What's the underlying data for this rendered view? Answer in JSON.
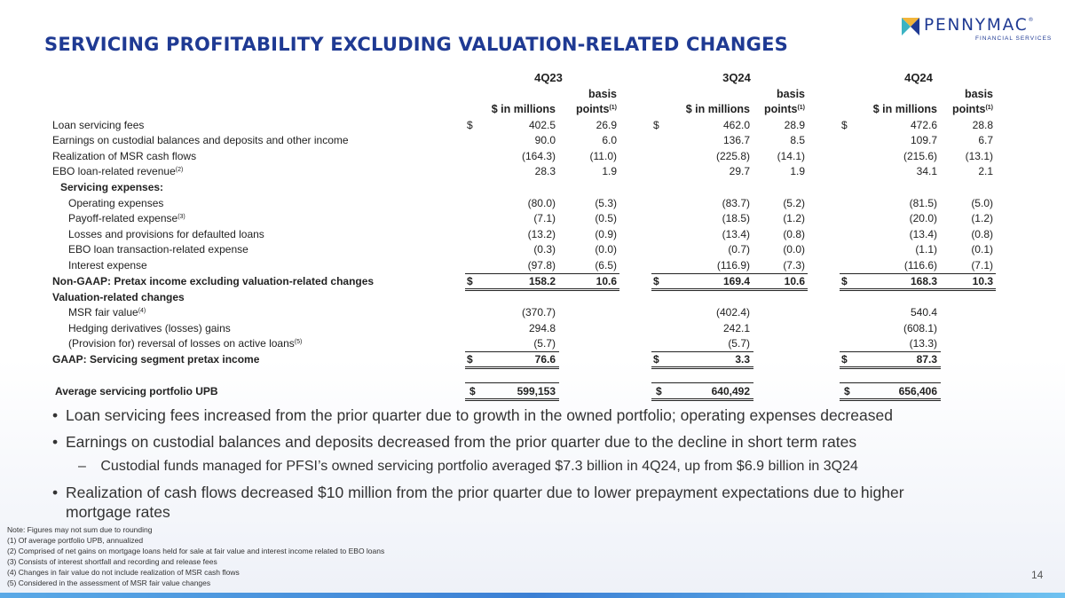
{
  "title": "SERVICING PROFITABILITY EXCLUDING VALUATION-RELATED CHANGES",
  "logo": {
    "name": "PENNYMAC",
    "sub": "FINANCIAL SERVICES",
    "trademark": "®"
  },
  "colors": {
    "title": "#1f3a93",
    "bar": "#3b7fd4",
    "logo_gold": "#f2b53a",
    "logo_teal": "#3bb3c3"
  },
  "table": {
    "periods": [
      "4Q23",
      "3Q24",
      "4Q24"
    ],
    "col_millions": "$ in millions",
    "col_basis_1": "basis",
    "col_basis_2": "points",
    "col_basis_sup": "(1)",
    "dollar": "$",
    "rows": [
      {
        "label": "Loan servicing fees",
        "sup": "",
        "v": [
          "402.5",
          "26.9",
          "462.0",
          "28.9",
          "472.6",
          "28.8"
        ]
      },
      {
        "label": "Earnings on custodial balances and deposits and other income",
        "sup": "",
        "v": [
          "90.0",
          "6.0",
          "136.7",
          "8.5",
          "109.7",
          "6.7"
        ]
      },
      {
        "label": "Realization of MSR cash flows",
        "sup": "",
        "v": [
          "(164.3)",
          "(11.0)",
          "(225.8)",
          "(14.1)",
          "(215.6)",
          "(13.1)"
        ]
      },
      {
        "label": "EBO loan-related revenue",
        "sup": "(2)",
        "v": [
          "28.3",
          "1.9",
          "29.7",
          "1.9",
          "34.1",
          "2.1"
        ]
      },
      {
        "label": "Servicing expenses:",
        "sup": "",
        "v": [
          "",
          "",
          "",
          "",
          "",
          ""
        ]
      },
      {
        "label": "Operating expenses",
        "sup": "",
        "v": [
          "(80.0)",
          "(5.3)",
          "(83.7)",
          "(5.2)",
          "(81.5)",
          "(5.0)"
        ]
      },
      {
        "label": "Payoff-related expense",
        "sup": "(3)",
        "v": [
          "(7.1)",
          "(0.5)",
          "(18.5)",
          "(1.2)",
          "(20.0)",
          "(1.2)"
        ]
      },
      {
        "label": "Losses and provisions for defaulted loans",
        "sup": "",
        "v": [
          "(13.2)",
          "(0.9)",
          "(13.4)",
          "(0.8)",
          "(13.4)",
          "(0.8)"
        ]
      },
      {
        "label": "EBO loan transaction-related expense",
        "sup": "",
        "v": [
          "(0.3)",
          "(0.0)",
          "(0.7)",
          "(0.0)",
          "(1.1)",
          "(0.1)"
        ]
      },
      {
        "label": "Interest expense",
        "sup": "",
        "v": [
          "(97.8)",
          "(6.5)",
          "(116.9)",
          "(7.3)",
          "(116.6)",
          "(7.1)"
        ]
      },
      {
        "label": "Non-GAAP: Pretax income excluding valuation-related changes",
        "sup": "",
        "v": [
          "158.2",
          "10.6",
          "169.4",
          "10.6",
          "168.3",
          "10.3"
        ]
      },
      {
        "label": "Valuation-related changes",
        "sup": "",
        "v": [
          "",
          "",
          "",
          "",
          "",
          ""
        ]
      },
      {
        "label": "MSR fair value",
        "sup": "(4)",
        "v": [
          "(370.7)",
          "",
          "(402.4)",
          "",
          "540.4",
          ""
        ]
      },
      {
        "label": "Hedging derivatives (losses) gains",
        "sup": "",
        "v": [
          "294.8",
          "",
          "242.1",
          "",
          "(608.1)",
          ""
        ]
      },
      {
        "label": "(Provision for) reversal of losses on active loans",
        "sup": "(5)",
        "v": [
          "(5.7)",
          "",
          "(5.7)",
          "",
          "(13.3)",
          ""
        ]
      },
      {
        "label": "GAAP: Servicing segment pretax income",
        "sup": "",
        "v": [
          "76.6",
          "",
          "3.3",
          "",
          "87.3",
          ""
        ]
      }
    ],
    "upb": {
      "label": "Average servicing portfolio UPB",
      "v": [
        "599,153",
        "640,492",
        "656,406"
      ]
    }
  },
  "bullets": [
    "Loan servicing fees increased from the prior quarter due to growth in the owned portfolio; operating expenses decreased",
    "Earnings on custodial balances and deposits decreased from the prior quarter due to the decline in short term rates",
    "Custodial funds managed for PFSI’s owned servicing portfolio averaged $7.3 billion in 4Q24, up from $6.9 billion in 3Q24",
    "Realization of cash flows decreased $10 million from the prior quarter due to lower prepayment expectations due to higher",
    "mortgage rates"
  ],
  "notes": [
    "Note: Figures may not sum due to rounding",
    "(1) Of average portfolio UPB, annualized",
    "(2) Comprised of net gains on mortgage loans held for sale at fair value and interest income related to EBO loans",
    "(3) Consists of interest shortfall and recording and release fees",
    "(4) Changes in fair value do not include realization of MSR cash flows",
    "(5) Considered in the assessment of MSR fair value changes"
  ],
  "page_number": "14"
}
